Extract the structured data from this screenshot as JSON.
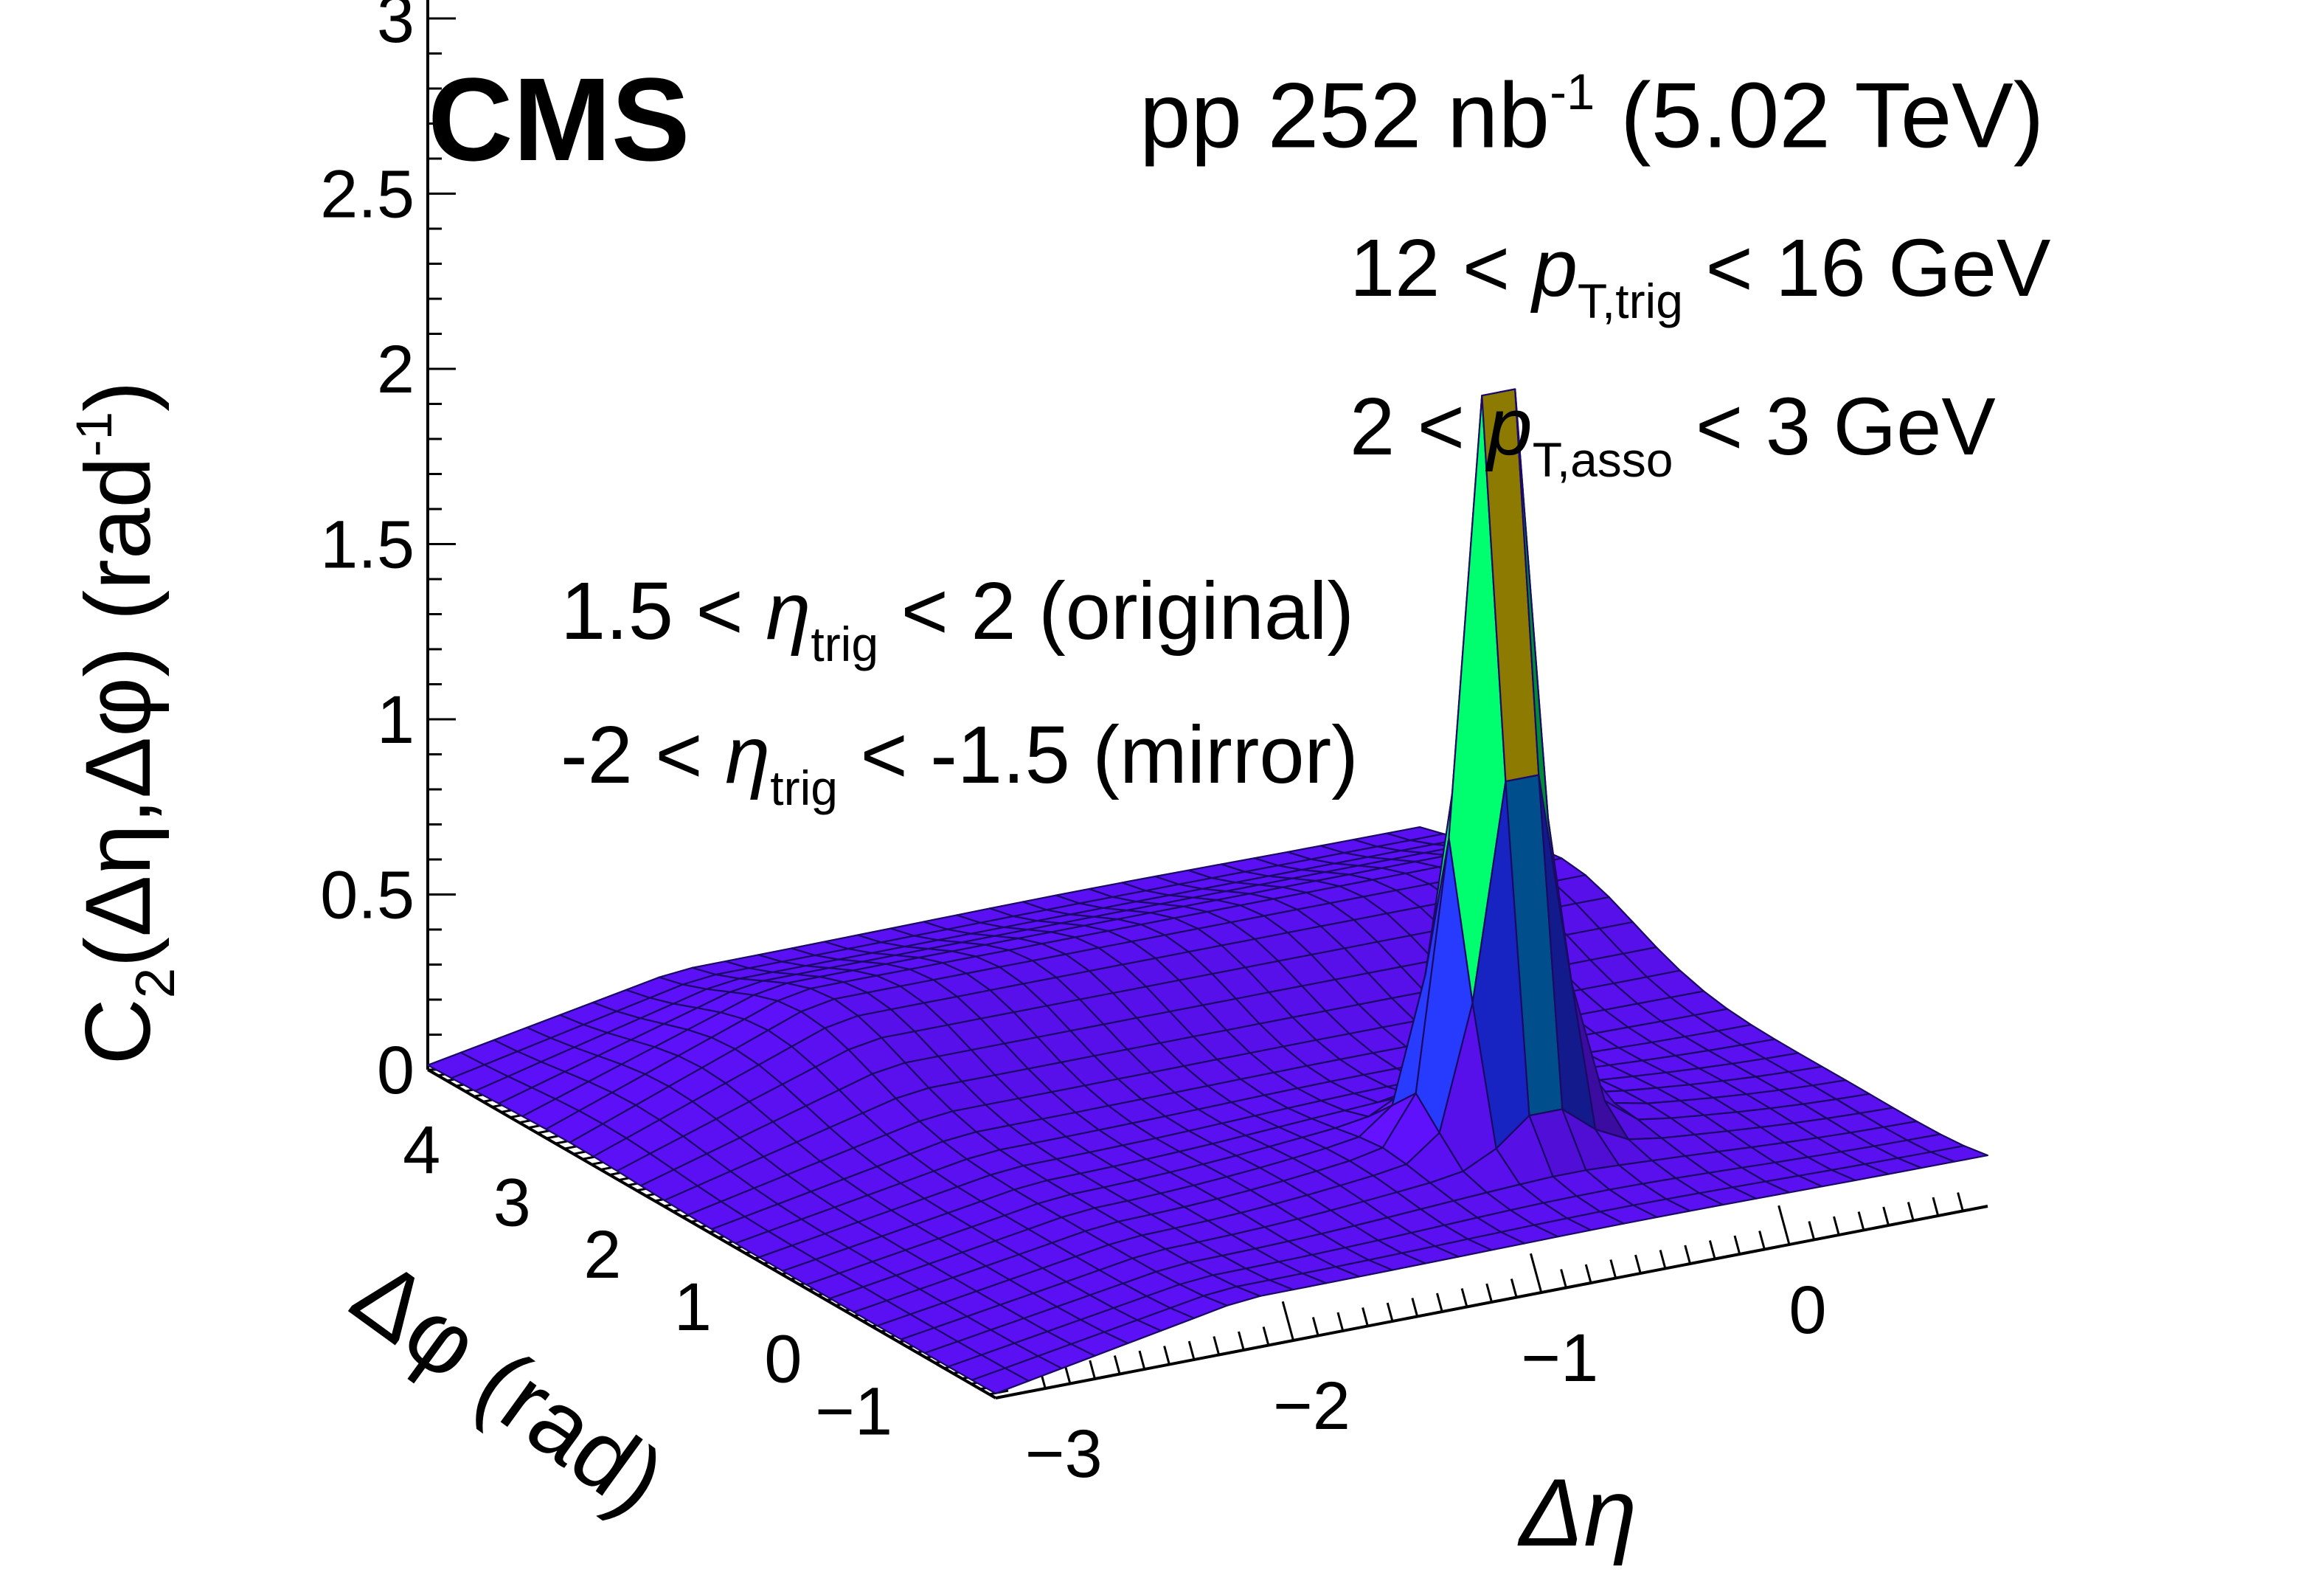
{
  "header": {
    "experiment": "CMS",
    "lumi_prefix": "pp 252 nb",
    "lumi_exp": "-1",
    "energy": "(5.02 TeV)"
  },
  "annotations": {
    "pt_trig": {
      "lo": "12 < ",
      "var": "p",
      "sub": "T,trig",
      "hi": " < 16 GeV"
    },
    "pt_asso": {
      "lo": "2 < ",
      "var": "p",
      "sub": "T,asso",
      "hi": " < 3 GeV"
    },
    "eta_original": {
      "lo": "1.5 < ",
      "var": "η",
      "sub": "trig",
      "hi": " < 2 (original)"
    },
    "eta_mirror": {
      "lo": "-2 < ",
      "var": "η",
      "sub": "trig",
      "hi": " < -1.5 (mirror)"
    }
  },
  "colors": {
    "surface_base": "#5a10f0",
    "grid_line": "#1a0a66",
    "palette": [
      "#5a10f0",
      "#2030ff",
      "#0090ff",
      "#00e0d0",
      "#00ff60",
      "#90ff00",
      "#ffe000",
      "#ff8000",
      "#ff0000"
    ]
  },
  "chart_data": {
    "type": "surface",
    "title": "CMS pp 252 nb-1 (5.02 TeV)",
    "xlabel": "Δη",
    "ylabel": "Δφ (rad)",
    "zlabel": {
      "main": "C",
      "sub": "2",
      "args": "(Δη,Δφ) (rad",
      "exp": "-1",
      "close": ")"
    },
    "xlim": [
      -3.2,
      0.8
    ],
    "ylim": [
      -1.571,
      4.712
    ],
    "zlim": [
      0,
      3.2
    ],
    "x_ticks": [
      -3,
      -2,
      -1,
      0
    ],
    "x_tick_labels": [
      "−3",
      "−2",
      "−1",
      "0"
    ],
    "y_ticks": [
      -1,
      0,
      1,
      2,
      3,
      4
    ],
    "y_tick_labels": [
      "−1",
      "0",
      "1",
      "2",
      "3",
      "4"
    ],
    "z_ticks": [
      0,
      0.5,
      1,
      1.5,
      2,
      2.5,
      3
    ],
    "z_tick_labels": [
      "0",
      "0.5",
      "1",
      "1.5",
      "2",
      "2.5",
      "3"
    ],
    "x_bins": 30,
    "y_bins": 24,
    "features": {
      "baseline": 0.12,
      "near_side_peak": {
        "dEta": -0.6,
        "dPhi": 0,
        "height": 2.45
      },
      "away_side_ridge": {
        "dPhi": 3.14,
        "height": 0.17
      },
      "acceptance_edge_dEta": -2.2
    }
  }
}
